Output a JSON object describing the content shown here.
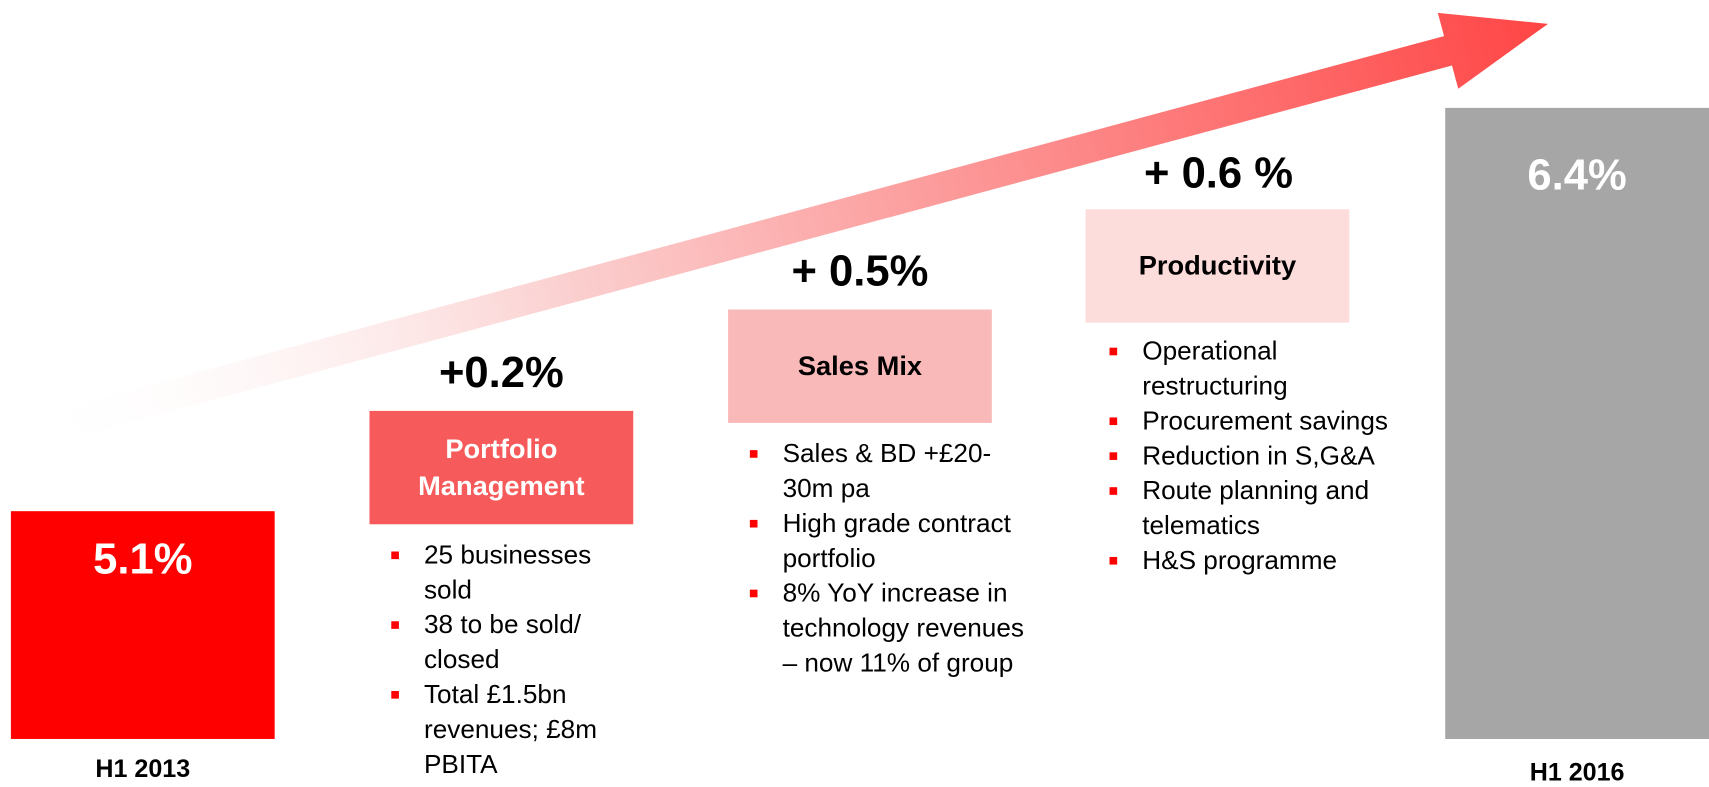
{
  "start": {
    "value": "5.1%",
    "label": "H1 2013"
  },
  "steps": [
    {
      "delta": "+0.2%",
      "title": "Portfolio Management",
      "bullets": [
        "25 businesses sold",
        "38 to be sold/ closed",
        "Total £1.5bn revenues; £8m PBITA"
      ]
    },
    {
      "delta": "+ 0.5%",
      "title": "Sales Mix",
      "bullets": [
        "Sales & BD +£20-30m pa",
        "High grade contract portfolio",
        "8% YoY increase in technology revenues – now 11% of group"
      ]
    },
    {
      "delta": "+ 0.6 %",
      "title": "Productivity",
      "bullets": [
        "Operational restructuring",
        "Procurement savings",
        "Reduction in S,G&A",
        "Route planning and telematics",
        "H&S programme"
      ]
    }
  ],
  "end": {
    "value": "6.4%",
    "label": "H1 2016"
  }
}
